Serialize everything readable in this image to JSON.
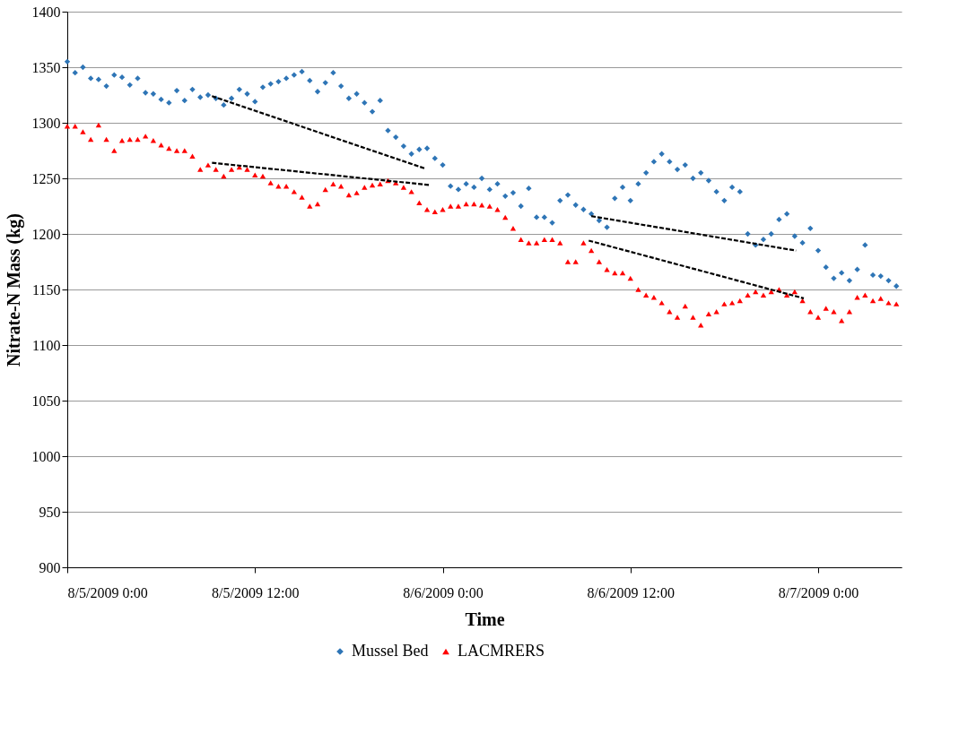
{
  "chart_data": {
    "type": "scatter",
    "xlabel": "Time",
    "ylabel": "Nitrate-N Mass (kg)",
    "xlim": [
      "2009-08-05T00:00",
      "2009-08-07T05:20"
    ],
    "xticks": [
      {
        "value": "2009-08-05T00:00",
        "label": "8/5/2009 0:00"
      },
      {
        "value": "2009-08-05T12:00",
        "label": "8/5/2009 12:00"
      },
      {
        "value": "2009-08-06T00:00",
        "label": "8/6/2009 0:00"
      },
      {
        "value": "2009-08-06T12:00",
        "label": "8/6/2009 12:00"
      },
      {
        "value": "2009-08-07T00:00",
        "label": "8/7/2009 0:00"
      }
    ],
    "ylim": [
      900,
      1400
    ],
    "yticks": [
      900,
      950,
      1000,
      1050,
      1100,
      1150,
      1200,
      1250,
      1300,
      1350,
      1400
    ],
    "grid": "y",
    "legend": "bottom",
    "x": [
      "2009-08-05T00:00",
      "2009-08-05T00:30",
      "2009-08-05T01:00",
      "2009-08-05T01:30",
      "2009-08-05T02:00",
      "2009-08-05T02:30",
      "2009-08-05T03:00",
      "2009-08-05T03:30",
      "2009-08-05T04:00",
      "2009-08-05T04:30",
      "2009-08-05T05:00",
      "2009-08-05T05:30",
      "2009-08-05T06:00",
      "2009-08-05T06:30",
      "2009-08-05T07:00",
      "2009-08-05T07:30",
      "2009-08-05T08:00",
      "2009-08-05T08:30",
      "2009-08-05T09:00",
      "2009-08-05T09:30",
      "2009-08-05T10:00",
      "2009-08-05T10:30",
      "2009-08-05T11:00",
      "2009-08-05T11:30",
      "2009-08-05T12:00",
      "2009-08-05T12:30",
      "2009-08-05T13:00",
      "2009-08-05T13:30",
      "2009-08-05T14:00",
      "2009-08-05T14:30",
      "2009-08-05T15:00",
      "2009-08-05T15:30",
      "2009-08-05T16:00",
      "2009-08-05T16:30",
      "2009-08-05T17:00",
      "2009-08-05T17:30",
      "2009-08-05T18:00",
      "2009-08-05T18:30",
      "2009-08-05T19:00",
      "2009-08-05T19:30",
      "2009-08-05T20:00",
      "2009-08-05T20:30",
      "2009-08-05T21:00",
      "2009-08-05T21:30",
      "2009-08-05T22:00",
      "2009-08-05T22:30",
      "2009-08-05T23:00",
      "2009-08-05T23:30",
      "2009-08-06T00:00",
      "2009-08-06T00:30",
      "2009-08-06T01:00",
      "2009-08-06T01:30",
      "2009-08-06T02:00",
      "2009-08-06T02:30",
      "2009-08-06T03:00",
      "2009-08-06T03:30",
      "2009-08-06T04:00",
      "2009-08-06T04:30",
      "2009-08-06T05:00",
      "2009-08-06T05:30",
      "2009-08-06T06:00",
      "2009-08-06T06:30",
      "2009-08-06T07:00",
      "2009-08-06T07:30",
      "2009-08-06T08:00",
      "2009-08-06T08:30",
      "2009-08-06T09:00",
      "2009-08-06T09:30",
      "2009-08-06T10:00",
      "2009-08-06T10:30",
      "2009-08-06T11:00",
      "2009-08-06T11:30",
      "2009-08-06T12:00",
      "2009-08-06T12:30",
      "2009-08-06T13:00",
      "2009-08-06T13:30",
      "2009-08-06T14:00",
      "2009-08-06T14:30",
      "2009-08-06T15:00",
      "2009-08-06T15:30",
      "2009-08-06T16:00",
      "2009-08-06T16:30",
      "2009-08-06T17:00",
      "2009-08-06T17:30",
      "2009-08-06T18:00",
      "2009-08-06T18:30",
      "2009-08-06T19:00",
      "2009-08-06T19:30",
      "2009-08-06T20:00",
      "2009-08-06T20:30",
      "2009-08-06T21:00",
      "2009-08-06T21:30",
      "2009-08-06T22:00",
      "2009-08-06T22:30",
      "2009-08-06T23:00",
      "2009-08-06T23:30",
      "2009-08-07T00:00",
      "2009-08-07T00:30",
      "2009-08-07T01:00",
      "2009-08-07T01:30",
      "2009-08-07T02:00",
      "2009-08-07T02:30",
      "2009-08-07T03:00",
      "2009-08-07T03:30",
      "2009-08-07T04:00",
      "2009-08-07T04:30",
      "2009-08-07T05:00"
    ],
    "series": [
      {
        "name": "Mussel Bed",
        "marker": "diamond",
        "color": "#2e75b6",
        "values": [
          1355,
          1345,
          1350,
          1340,
          1339,
          1333,
          1343,
          1341,
          1334,
          1340,
          1327,
          1326,
          1321,
          1318,
          1329,
          1320,
          1330,
          1323,
          1325,
          1322,
          1316,
          1322,
          1330,
          1326,
          1319,
          1332,
          1335,
          1337,
          1340,
          1343,
          1346,
          1338,
          1328,
          1336,
          1345,
          1333,
          1322,
          1326,
          1318,
          1310,
          1320,
          1293,
          1287,
          1279,
          1272,
          1276,
          1277,
          1268,
          1262,
          1243,
          1240,
          1245,
          1242,
          1250,
          1240,
          1245,
          1234,
          1237,
          1225,
          1241,
          1215,
          1215,
          1210,
          1230,
          1235,
          1226,
          1222,
          1218,
          1212,
          1206,
          1232,
          1242,
          1230,
          1245,
          1255,
          1265,
          1272,
          1265,
          1258,
          1262,
          1250,
          1255,
          1248,
          1238,
          1230,
          1242,
          1238,
          1200,
          1190,
          1195,
          1200,
          1213,
          1218,
          1198,
          1192,
          1205,
          1185,
          1170,
          1160,
          1165,
          1158,
          1168,
          1190,
          1163,
          1162,
          1158,
          1153
        ]
      },
      {
        "name": "LACMRERS",
        "marker": "triangle",
        "color": "#ff0000",
        "values": [
          1297,
          1297,
          1292,
          1285,
          1298,
          1285,
          1275,
          1284,
          1285,
          1285,
          1288,
          1284,
          1280,
          1277,
          1275,
          1275,
          1270,
          1258,
          1262,
          1258,
          1252,
          1258,
          1260,
          1258,
          1253,
          1252,
          1246,
          1243,
          1243,
          1238,
          1233,
          1225,
          1227,
          1240,
          1245,
          1243,
          1235,
          1237,
          1242,
          1244,
          1245,
          1248,
          1246,
          1242,
          1238,
          1228,
          1222,
          1220,
          1222,
          1225,
          1225,
          1227,
          1227,
          1226,
          1225,
          1222,
          1215,
          1205,
          1195,
          1192,
          1192,
          1195,
          1195,
          1192,
          1175,
          1175,
          1192,
          1185,
          1175,
          1168,
          1165,
          1165,
          1160,
          1150,
          1145,
          1143,
          1138,
          1130,
          1125,
          1135,
          1125,
          1118,
          1128,
          1130,
          1137,
          1138,
          1140,
          1145,
          1148,
          1145,
          1148,
          1150,
          1145,
          1148,
          1140,
          1130,
          1125,
          1133,
          1130,
          1122,
          1130,
          1143,
          1145,
          1140,
          1142,
          1138,
          1137
        ]
      },
      {
        "type": "line",
        "line_style": "dashed",
        "color": "#000000",
        "x": [
          "2009-08-05T09:15",
          "2009-08-05T22:50"
        ],
        "values": [
          1324,
          1259
        ]
      },
      {
        "type": "line",
        "line_style": "dashed",
        "color": "#000000",
        "x": [
          "2009-08-05T09:15",
          "2009-08-05T23:10"
        ],
        "values": [
          1264,
          1244
        ]
      },
      {
        "type": "line",
        "line_style": "dashed",
        "color": "#000000",
        "x": [
          "2009-08-06T09:30",
          "2009-08-06T22:35"
        ],
        "values": [
          1216,
          1185
        ]
      },
      {
        "type": "line",
        "line_style": "dashed",
        "color": "#000000",
        "x": [
          "2009-08-06T09:20",
          "2009-08-06T23:05"
        ],
        "values": [
          1194,
          1142
        ]
      }
    ]
  }
}
